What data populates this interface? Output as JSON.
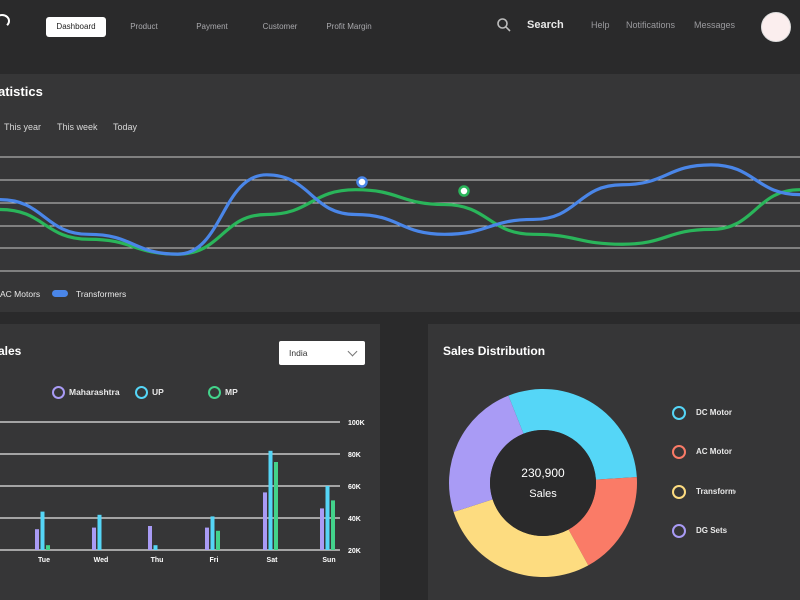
{
  "nav": {
    "items": [
      "Dashboard",
      "Product",
      "Payment",
      "Customer",
      "Profit Margin"
    ],
    "search_label": "Search",
    "right_items": [
      "Help",
      "Notifications",
      "Messages"
    ],
    "logo_icon": "logo-icon",
    "search_icon": "search-icon",
    "avatar_icon": "avatar"
  },
  "statistics": {
    "title": "atistics",
    "filters": [
      "This year",
      "This week",
      "Today"
    ],
    "legend": [
      "AC Motors",
      "Transformers"
    ],
    "colors": {
      "blue": "#4a86e8",
      "green": "#2ab55a"
    }
  },
  "sales": {
    "title": "ales",
    "dropdown_value": "India",
    "legend": [
      {
        "label": "Maharashtra",
        "color": "#a99bf5"
      },
      {
        "label": "UP",
        "color": "#55d6f7"
      },
      {
        "label": "MP",
        "color": "#43d38b"
      }
    ],
    "y_ticks": [
      "100K",
      "80K",
      "60K",
      "40K",
      "20K"
    ],
    "days": [
      "Tue",
      "Wed",
      "Thu",
      "Fri",
      "Sat",
      "Sun"
    ]
  },
  "distribution": {
    "title": "Sales Distribution",
    "total": "230,900",
    "caption": "Sales",
    "legend": [
      {
        "label": "DC Motor",
        "color": "#55d6f7"
      },
      {
        "label": "AC Motor",
        "color": "#fa7b67"
      },
      {
        "label": "Transformer",
        "color": "#fddc80"
      },
      {
        "label": "DG Sets",
        "color": "#a99bf5"
      }
    ]
  },
  "chart_data": [
    {
      "type": "line",
      "series": [
        {
          "name": "AC Motors",
          "color": "#2ab55a",
          "values": [
            3.1,
            2.5,
            2.2,
            3.0,
            3.5,
            3.2,
            2.6,
            2.4,
            2.7,
            3.5
          ]
        },
        {
          "name": "Transformers",
          "color": "#4a86e8",
          "values": [
            3.3,
            2.6,
            2.2,
            3.8,
            3.0,
            2.6,
            2.9,
            3.6,
            4.0,
            3.4
          ]
        }
      ]
    },
    {
      "type": "bar",
      "categories": [
        "Tue",
        "Wed",
        "Thu",
        "Fri",
        "Sat",
        "Sun"
      ],
      "series": [
        {
          "name": "Maharashtra",
          "values": [
            33,
            34,
            35,
            34,
            56,
            46
          ]
        },
        {
          "name": "UP",
          "values": [
            44,
            42,
            23,
            41,
            82,
            60
          ]
        },
        {
          "name": "MP",
          "values": [
            23,
            19,
            17,
            32,
            75,
            51
          ]
        }
      ],
      "y_ticks": [
        "100K",
        "80K",
        "60K",
        "40K",
        "20K"
      ],
      "ylim": [
        0,
        100
      ]
    },
    {
      "type": "pie",
      "slices": [
        {
          "name": "DC Motor",
          "value": 30
        },
        {
          "name": "AC Motor",
          "value": 18
        },
        {
          "name": "Transformer",
          "value": 28
        },
        {
          "name": "DG Sets",
          "value": 24
        }
      ]
    }
  ]
}
